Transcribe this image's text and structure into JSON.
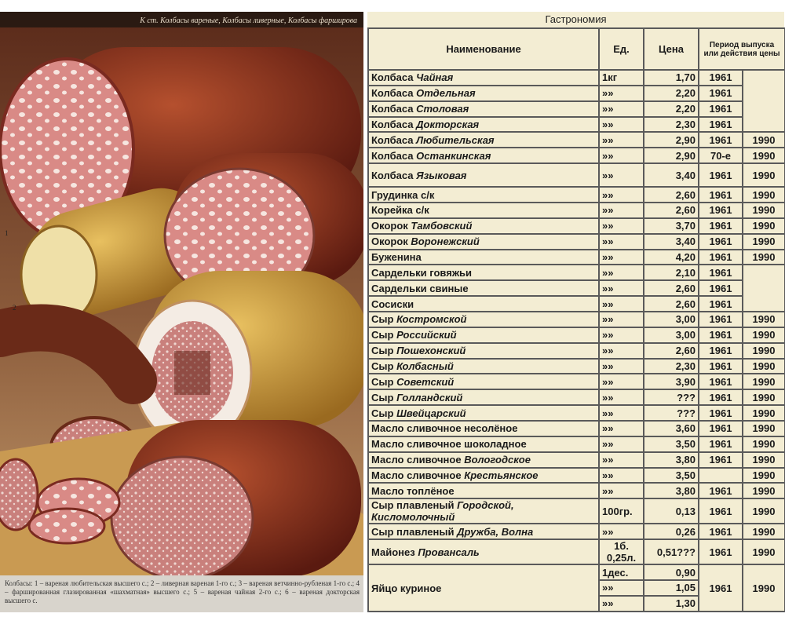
{
  "illustration": {
    "top_caption": "К ст. Колбасы вареные, Колбасы ливерные, Колбасы фарширова",
    "markers": [
      "1",
      "2"
    ],
    "bottom_caption": "Колбасы: 1 – вареная любительская высшего с.; 2 – ливерная вареная 1-го с.; 3 – вареная ветчинно-рубленая 1-го с.; 4 – фаршированная глазированная «шахматная» высшего с.; 5 – вареная чайная 2-го с.; 6 – вареная докторская высшего с."
  },
  "table": {
    "title": "Гастрономия",
    "headers": [
      "Наименование",
      "Ед.",
      "Цена",
      "Период выпуска или действия цены"
    ],
    "rows": [
      {
        "text": "Колбаса",
        "em": "Чайная",
        "unit": "1кг",
        "price": "1,70",
        "from": "1961",
        "to": null
      },
      {
        "text": "Колбаса",
        "em": "Отдельная",
        "unit": "»»",
        "price": "2,20",
        "from": "1961",
        "to": null
      },
      {
        "text": "Колбаса",
        "em": "Столовая",
        "unit": "»»",
        "price": "2,20",
        "from": "1961",
        "to": null
      },
      {
        "text": "Колбаса",
        "em": "Докторская",
        "unit": "»»",
        "price": "2,30",
        "from": "1961",
        "to": null
      },
      {
        "text": "Колбаса",
        "em": "Любительская",
        "unit": "»»",
        "price": "2,90",
        "from": "1961",
        "to": "1990"
      },
      {
        "text": "Колбаса",
        "em": "Останкинская",
        "unit": "»»",
        "price": "2,90",
        "from": "70-е",
        "to": "1990"
      },
      {
        "text": "Колбаса",
        "em": "Языковая",
        "unit": "»»",
        "price": "3,40",
        "from": "1961",
        "to": "1990"
      },
      {
        "text": "Грудинка с/к",
        "unit": "»»",
        "price": "2,60",
        "from": "1961",
        "to": "1990"
      },
      {
        "text": "Корейка с/к",
        "unit": "»»",
        "price": "2,60",
        "from": "1961",
        "to": "1990"
      },
      {
        "text": "Окорок",
        "em": "Тамбовский",
        "unit": "»»",
        "price": "3,70",
        "from": "1961",
        "to": "1990"
      },
      {
        "text": "Окорок",
        "em": "Воронежский",
        "unit": "»»",
        "price": "3,40",
        "from": "1961",
        "to": "1990"
      },
      {
        "text": "Буженина",
        "unit": "»»",
        "price": "4,20",
        "from": "1961",
        "to": "1990"
      },
      {
        "text": "Сардельки говяжьи",
        "unit": "»»",
        "price": "2,10",
        "from": "1961",
        "to": null
      },
      {
        "text": "Сардельки свиные",
        "unit": "»»",
        "price": "2,60",
        "from": "1961",
        "to": null
      },
      {
        "text": "Сосиски",
        "unit": "»»",
        "price": "2,60",
        "from": "1961",
        "to": null
      },
      {
        "text": "Сыр",
        "em": "Костромской",
        "unit": "»»",
        "price": "3,00",
        "from": "1961",
        "to": "1990"
      },
      {
        "text": "Сыр",
        "em": "Российский",
        "unit": "»»",
        "price": "3,00",
        "from": "1961",
        "to": "1990"
      },
      {
        "text": "Сыр",
        "em": "Пошехонский",
        "unit": "»»",
        "price": "2,60",
        "from": "1961",
        "to": "1990"
      },
      {
        "text": "Сыр",
        "em": "Колбасный",
        "unit": "»»",
        "price": "2,30",
        "from": "1961",
        "to": "1990"
      },
      {
        "text": "Сыр",
        "em": "Советский",
        "unit": "»»",
        "price": "3,90",
        "from": "1961",
        "to": "1990"
      },
      {
        "text": "Сыр",
        "em": "Голландский",
        "unit": "»»",
        "price": "???",
        "from": "1961",
        "to": "1990"
      },
      {
        "text": "Сыр",
        "em": "Швейцарский",
        "unit": "»»",
        "price": "???",
        "from": "1961",
        "to": "1990"
      },
      {
        "text": "Масло сливочное несолёное",
        "unit": "»»",
        "price": "3,60",
        "from": "1961",
        "to": "1990"
      },
      {
        "text": "Масло сливочное шоколадное",
        "unit": "»»",
        "price": "3,50",
        "from": "1961",
        "to": "1990"
      },
      {
        "text": "Масло сливочное",
        "em": "Вологодское",
        "unit": "»»",
        "price": "3,80",
        "from": "1961",
        "to": "1990"
      },
      {
        "text": "Масло сливочное",
        "em": "Крестьянское",
        "unit": "»»",
        "price": "3,50",
        "from": null,
        "to": "1990"
      },
      {
        "text": "Масло топлёное",
        "unit": "»»",
        "price": "3,80",
        "from": "1961",
        "to": "1990"
      },
      {
        "text": "Сыр плавленый",
        "em": "Городской, Кисломолочный",
        "unit": "100гр.",
        "price": "0,13",
        "from": "1961",
        "to": "1990"
      },
      {
        "text": "Сыр плавленый",
        "em": "Дружба, Волна",
        "unit": "»»",
        "price": "0,26",
        "from": "1961",
        "to": "1990"
      },
      {
        "text": "Майонез",
        "em": "Провансаль",
        "unit": "1б. 0,25л.",
        "price": "0,51???",
        "from": "1961",
        "to": "1990"
      }
    ],
    "egg": {
      "text": "Яйцо куриное",
      "units": [
        "1дес.",
        "»»",
        "»»"
      ],
      "prices": [
        "0,90",
        "1,05",
        "1,30"
      ],
      "from": "1961",
      "to": "1990"
    }
  }
}
